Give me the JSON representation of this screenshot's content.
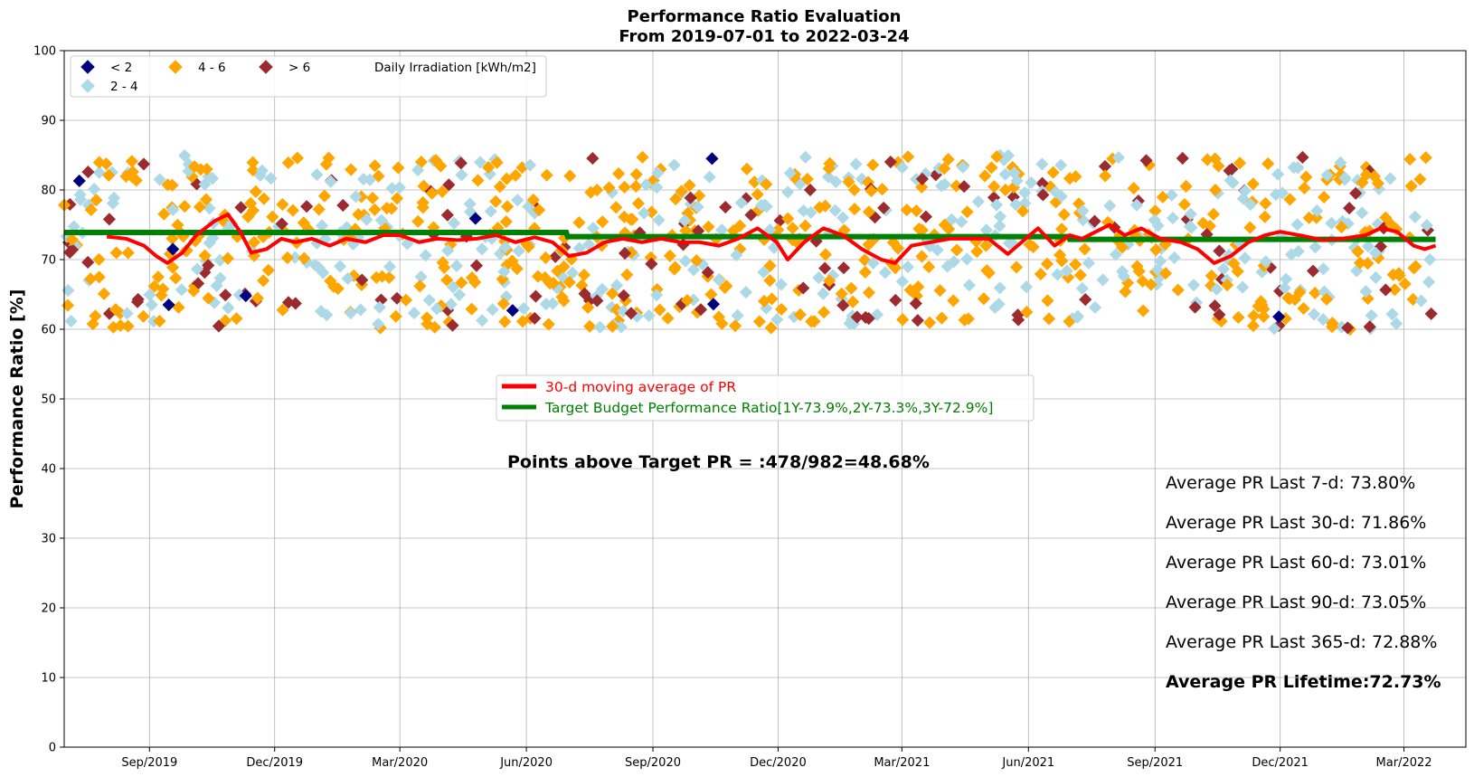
{
  "chart_data": {
    "type": "scatter",
    "title": "Performance Ratio Evaluation",
    "subtitle": "From 2019-07-01 to 2022-03-24",
    "ylabel": "Performance Ratio [%]",
    "xlabel": "",
    "xlim": [
      "2019-07-01",
      "2022-04-15"
    ],
    "ylim": [
      0,
      100
    ],
    "yticks": [
      0,
      10,
      20,
      30,
      40,
      50,
      60,
      70,
      80,
      90,
      100
    ],
    "xticks": [
      {
        "date": "2019-09-01",
        "label": "Sep/2019"
      },
      {
        "date": "2019-12-01",
        "label": "Dec/2019"
      },
      {
        "date": "2020-03-01",
        "label": "Mar/2020"
      },
      {
        "date": "2020-06-01",
        "label": "Jun/2020"
      },
      {
        "date": "2020-09-01",
        "label": "Sep/2020"
      },
      {
        "date": "2020-12-01",
        "label": "Dec/2020"
      },
      {
        "date": "2021-03-01",
        "label": "Mar/2021"
      },
      {
        "date": "2021-06-01",
        "label": "Jun/2021"
      },
      {
        "date": "2021-09-01",
        "label": "Sep/2021"
      },
      {
        "date": "2021-12-01",
        "label": "Dec/2021"
      },
      {
        "date": "2022-03-01",
        "label": "Mar/2022"
      }
    ],
    "grid": true,
    "irradiance_legend": {
      "title": "Daily Irradiation [kWh/m2]",
      "placement": "top-left",
      "classes": [
        {
          "label": "< 2",
          "color": "#00007f"
        },
        {
          "label": "4 - 6",
          "color": "#ffa500"
        },
        {
          "label": "> 6",
          "color": "#9b2b2f"
        },
        {
          "label": "2 - 4",
          "color": "#add8e6"
        }
      ]
    },
    "series": [
      {
        "name": "30-d moving average of PR",
        "color": "#ff0000",
        "points": [
          [
            "2019-08-01",
            73.3
          ],
          [
            "2019-08-15",
            73.0
          ],
          [
            "2019-08-28",
            72.0
          ],
          [
            "2019-09-06",
            70.5
          ],
          [
            "2019-09-14",
            69.5
          ],
          [
            "2019-09-25",
            71.0
          ],
          [
            "2019-10-05",
            73.5
          ],
          [
            "2019-10-18",
            75.5
          ],
          [
            "2019-10-28",
            76.5
          ],
          [
            "2019-11-06",
            74.0
          ],
          [
            "2019-11-14",
            71.0
          ],
          [
            "2019-11-25",
            71.5
          ],
          [
            "2019-12-06",
            73.0
          ],
          [
            "2019-12-16",
            72.5
          ],
          [
            "2019-12-28",
            73.0
          ],
          [
            "2020-01-10",
            72.0
          ],
          [
            "2020-01-22",
            73.0
          ],
          [
            "2020-02-05",
            72.5
          ],
          [
            "2020-02-18",
            73.5
          ],
          [
            "2020-03-01",
            73.5
          ],
          [
            "2020-03-15",
            72.5
          ],
          [
            "2020-03-28",
            73.0
          ],
          [
            "2020-04-12",
            72.8
          ],
          [
            "2020-04-26",
            73.0
          ],
          [
            "2020-05-10",
            73.5
          ],
          [
            "2020-05-24",
            72.5
          ],
          [
            "2020-06-07",
            73.2
          ],
          [
            "2020-06-20",
            72.5
          ],
          [
            "2020-07-02",
            70.5
          ],
          [
            "2020-07-15",
            71.0
          ],
          [
            "2020-07-28",
            72.5
          ],
          [
            "2020-08-10",
            73.0
          ],
          [
            "2020-08-24",
            72.5
          ],
          [
            "2020-09-07",
            73.0
          ],
          [
            "2020-09-21",
            72.5
          ],
          [
            "2020-10-05",
            72.5
          ],
          [
            "2020-10-19",
            72.0
          ],
          [
            "2020-11-02",
            73.0
          ],
          [
            "2020-11-16",
            74.5
          ],
          [
            "2020-11-30",
            72.5
          ],
          [
            "2020-12-08",
            70.0
          ],
          [
            "2020-12-20",
            72.5
          ],
          [
            "2021-01-03",
            74.5
          ],
          [
            "2021-01-17",
            73.5
          ],
          [
            "2021-01-31",
            71.5
          ],
          [
            "2021-02-14",
            70.0
          ],
          [
            "2021-02-24",
            69.5
          ],
          [
            "2021-03-08",
            72.0
          ],
          [
            "2021-03-22",
            72.5
          ],
          [
            "2021-04-05",
            73.0
          ],
          [
            "2021-04-19",
            73.0
          ],
          [
            "2021-05-03",
            73.0
          ],
          [
            "2021-05-17",
            70.8
          ],
          [
            "2021-05-30",
            73.0
          ],
          [
            "2021-06-08",
            74.5
          ],
          [
            "2021-06-20",
            72.0
          ],
          [
            "2021-07-01",
            73.5
          ],
          [
            "2021-07-10",
            73.0
          ],
          [
            "2021-07-20",
            74.0
          ],
          [
            "2021-07-30",
            75.0
          ],
          [
            "2021-08-10",
            73.5
          ],
          [
            "2021-08-22",
            74.5
          ],
          [
            "2021-09-05",
            73.0
          ],
          [
            "2021-09-20",
            72.5
          ],
          [
            "2021-10-02",
            71.5
          ],
          [
            "2021-10-14",
            69.5
          ],
          [
            "2021-10-26",
            70.5
          ],
          [
            "2021-11-08",
            72.5
          ],
          [
            "2021-11-20",
            73.5
          ],
          [
            "2021-12-01",
            74.0
          ],
          [
            "2021-12-15",
            73.5
          ],
          [
            "2022-01-01",
            72.8
          ],
          [
            "2022-01-15",
            73.0
          ],
          [
            "2022-02-01",
            73.5
          ],
          [
            "2022-02-12",
            74.5
          ],
          [
            "2022-02-24",
            74.0
          ],
          [
            "2022-03-08",
            72.0
          ],
          [
            "2022-03-16",
            71.5
          ],
          [
            "2022-03-24",
            72.0
          ]
        ]
      },
      {
        "name": "Target Budget Performance Ratio[1Y-73.9%,2Y-73.3%,3Y-72.9%]",
        "color": "#008000",
        "points": [
          [
            "2019-07-01",
            73.9
          ],
          [
            "2020-06-30",
            73.9
          ],
          [
            "2020-07-01",
            73.3
          ],
          [
            "2021-06-30",
            73.3
          ],
          [
            "2021-07-01",
            72.9
          ],
          [
            "2022-03-24",
            72.9
          ]
        ]
      }
    ],
    "scatter_summary": {
      "date_range": [
        "2019-07-01",
        "2022-03-24"
      ],
      "pr_range": [
        60,
        85
      ],
      "total_points": 982,
      "dark_navy_points": [
        [
          "2019-07-12",
          81.3
        ],
        [
          "2019-09-15",
          63.5
        ],
        [
          "2019-09-18",
          71.5
        ],
        [
          "2019-11-10",
          64.8
        ],
        [
          "2020-04-25",
          75.9
        ],
        [
          "2020-05-22",
          62.7
        ],
        [
          "2020-10-15",
          63.6
        ],
        [
          "2020-10-14",
          84.5
        ],
        [
          "2021-11-30",
          61.8
        ]
      ]
    },
    "annotations": {
      "points_above_target": "Points above Target PR = :478/982=48.68%",
      "avg_7d": "Average PR Last 7-d: 73.80%",
      "avg_30d": "Average PR Last 30-d: 71.86%",
      "avg_60d": "Average PR Last 60-d: 73.01%",
      "avg_90d": "Average PR Last 90-d: 73.05%",
      "avg_365d": "Average PR Last 365-d: 72.88%",
      "avg_lifetime": "Average PR Lifetime:72.73%"
    }
  }
}
